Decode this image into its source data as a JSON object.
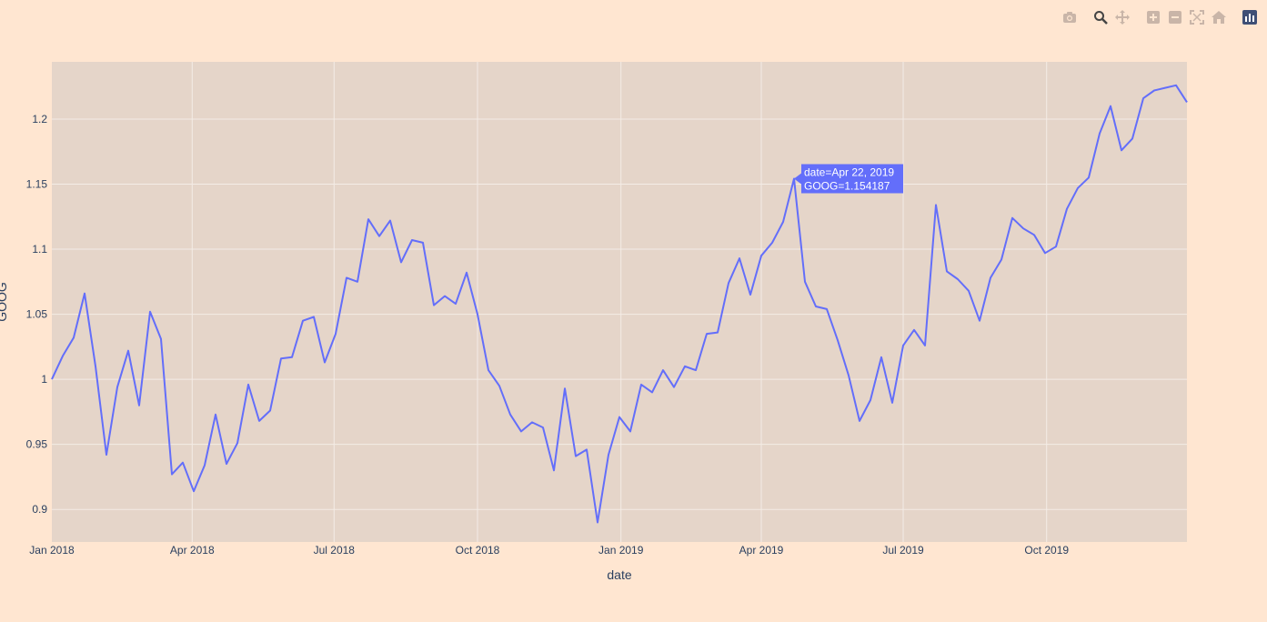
{
  "modebar": {
    "buttons": [
      "camera-icon",
      "zoom-icon",
      "pan-icon",
      "zoom-in-icon",
      "zoom-out-icon",
      "autoscale-icon",
      "reset-axes-icon",
      "plotly-logo-icon"
    ]
  },
  "colors": {
    "paper": "#ffe6d1",
    "plot": "#e5d5c9",
    "grid": "#f4ece6",
    "line": "#636efa",
    "text": "#2a3f5f"
  },
  "chart_data": {
    "type": "line",
    "title": "",
    "xlabel": "date",
    "ylabel": "GOOG",
    "xlim": [
      "2018-01-01",
      "2019-12-30"
    ],
    "ylim": [
      0.875,
      1.244
    ],
    "yticks": [
      0.9,
      0.95,
      1,
      1.05,
      1.1,
      1.15,
      1.2
    ],
    "ytick_labels": [
      "0.9",
      "0.95",
      "1",
      "1.05",
      "1.1",
      "1.15",
      "1.2"
    ],
    "xticks": [
      "2018-01-01",
      "2018-04-01",
      "2018-07-01",
      "2018-10-01",
      "2019-01-01",
      "2019-04-01",
      "2019-07-01",
      "2019-10-01"
    ],
    "xtick_labels": [
      "Jan 2018",
      "Apr 2018",
      "Jul 2018",
      "Oct 2018",
      "Jan 2019",
      "Apr 2019",
      "Jul 2019",
      "Oct 2019"
    ],
    "grid": true,
    "series": [
      {
        "x": [
          "2018-01-01",
          "2018-01-08",
          "2018-01-15",
          "2018-01-22",
          "2018-01-29",
          "2018-02-05",
          "2018-02-12",
          "2018-02-19",
          "2018-02-26",
          "2018-03-05",
          "2018-03-12",
          "2018-03-19",
          "2018-03-26",
          "2018-04-02",
          "2018-04-09",
          "2018-04-16",
          "2018-04-23",
          "2018-04-30",
          "2018-05-07",
          "2018-05-14",
          "2018-05-21",
          "2018-05-28",
          "2018-06-04",
          "2018-06-11",
          "2018-06-18",
          "2018-06-25",
          "2018-07-02",
          "2018-07-09",
          "2018-07-16",
          "2018-07-23",
          "2018-07-30",
          "2018-08-06",
          "2018-08-13",
          "2018-08-20",
          "2018-08-27",
          "2018-09-03",
          "2018-09-10",
          "2018-09-17",
          "2018-09-24",
          "2018-10-01",
          "2018-10-08",
          "2018-10-15",
          "2018-10-22",
          "2018-10-29",
          "2018-11-05",
          "2018-11-12",
          "2018-11-19",
          "2018-11-26",
          "2018-12-03",
          "2018-12-10",
          "2018-12-17",
          "2018-12-24",
          "2018-12-31",
          "2019-01-07",
          "2019-01-14",
          "2019-01-21",
          "2019-01-28",
          "2019-02-04",
          "2019-02-11",
          "2019-02-18",
          "2019-02-25",
          "2019-03-04",
          "2019-03-11",
          "2019-03-18",
          "2019-03-25",
          "2019-04-01",
          "2019-04-08",
          "2019-04-15",
          "2019-04-22",
          "2019-04-29",
          "2019-05-06",
          "2019-05-13",
          "2019-05-20",
          "2019-05-27",
          "2019-06-03",
          "2019-06-10",
          "2019-06-17",
          "2019-06-24",
          "2019-07-01",
          "2019-07-08",
          "2019-07-15",
          "2019-07-22",
          "2019-07-29",
          "2019-08-05",
          "2019-08-12",
          "2019-08-19",
          "2019-08-26",
          "2019-09-02",
          "2019-09-09",
          "2019-09-16",
          "2019-09-23",
          "2019-09-30",
          "2019-10-07",
          "2019-10-14",
          "2019-10-21",
          "2019-10-28",
          "2019-11-04",
          "2019-11-11",
          "2019-11-18",
          "2019-11-25",
          "2019-12-02",
          "2019-12-09",
          "2019-12-16",
          "2019-12-23",
          "2019-12-30"
        ],
        "y": [
          1.0,
          1.018,
          1.032,
          1.066,
          1.01,
          0.942,
          0.994,
          1.022,
          0.98,
          1.052,
          1.031,
          0.927,
          0.936,
          0.914,
          0.934,
          0.973,
          0.935,
          0.951,
          0.996,
          0.968,
          0.976,
          1.016,
          1.017,
          1.045,
          1.048,
          1.013,
          1.035,
          1.078,
          1.075,
          1.123,
          1.11,
          1.122,
          1.09,
          1.107,
          1.105,
          1.057,
          1.064,
          1.058,
          1.082,
          1.05,
          1.007,
          0.995,
          0.973,
          0.96,
          0.967,
          0.963,
          0.93,
          0.993,
          0.941,
          0.946,
          0.89,
          0.942,
          0.971,
          0.96,
          0.996,
          0.99,
          1.007,
          0.994,
          1.01,
          1.007,
          1.035,
          1.036,
          1.074,
          1.093,
          1.065,
          1.095,
          1.105,
          1.121,
          1.154187,
          1.075,
          1.056,
          1.054,
          1.03,
          1.003,
          0.968,
          0.984,
          1.017,
          0.982,
          1.026,
          1.038,
          1.026,
          1.134,
          1.083,
          1.077,
          1.068,
          1.045,
          1.078,
          1.092,
          1.124,
          1.116,
          1.111,
          1.097,
          1.102,
          1.131,
          1.147,
          1.155,
          1.189,
          1.21,
          1.176,
          1.185,
          1.216,
          1.222,
          1.224,
          1.226,
          1.213
        ]
      }
    ],
    "hover": {
      "index": 68,
      "text": [
        "date=Apr 22, 2019",
        "GOOG=1.154187"
      ]
    }
  }
}
